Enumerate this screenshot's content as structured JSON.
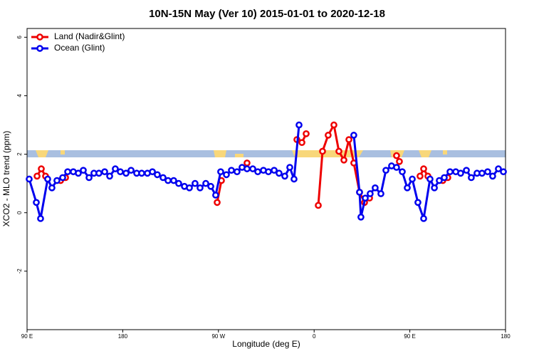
{
  "chart_data": {
    "type": "line",
    "title": "10N-15N May (Ver 10)   2015-01-01 to 2020-12-18",
    "xlabel": "Longitude (deg E)",
    "ylabel": "XCO2 - MLO trend (ppm)",
    "xlim": [
      90,
      540
    ],
    "xticks": [
      {
        "value": 90,
        "label": "90 E"
      },
      180,
      {
        "value": 270,
        "label": "90 W"
      },
      {
        "value": 360,
        "label": "0"
      },
      {
        "value": 450,
        "label": "90 E"
      },
      {
        "value": 540,
        "label": "180"
      }
    ],
    "ylim": [
      -4,
      6.3
    ],
    "yticks": [
      -2,
      0,
      2,
      4,
      6
    ],
    "legend": "top-left",
    "series": [
      {
        "name": "Land (Nadir&Glint)",
        "color": "#ee0000",
        "x": [
          99.4,
          103.4,
          107.4,
          null,
          121.5,
          126.2,
          null,
          268.8,
          272.8,
          null,
          296.9,
          null,
          343.8,
          348.5,
          352.5,
          null,
          363.9,
          367.9,
          373.2,
          378.6,
          383.3,
          388.0,
          392.7,
          397.3,
          402.7,
          407.4,
          412.1,
          null,
          437.5,
          440.2,
          null,
          459.6,
          463.0,
          467.0,
          null,
          481.0,
          485.7
        ],
        "values": [
          1.25,
          1.5,
          1.25,
          null,
          1.1,
          1.2,
          null,
          0.35,
          1.1,
          null,
          1.7,
          null,
          2.5,
          2.4,
          2.7,
          null,
          0.25,
          2.1,
          2.65,
          3.0,
          2.1,
          1.8,
          2.5,
          1.7,
          0.7,
          0.35,
          0.5,
          null,
          1.95,
          1.75,
          null,
          1.25,
          1.5,
          1.25,
          null,
          1.1,
          1.2
        ]
      },
      {
        "name": "Ocean (Glint)",
        "color": "#0000ee",
        "x": [
          92.0,
          98.7,
          102.7,
          109.4,
          113.4,
          118.1,
          123.5,
          128.2,
          133.5,
          138.2,
          142.9,
          148.3,
          152.9,
          157.6,
          163.0,
          167.7,
          173.0,
          177.7,
          183.1,
          187.8,
          193.1,
          197.8,
          203.2,
          207.9,
          212.5,
          217.9,
          222.6,
          227.9,
          232.6,
          238.0,
          242.7,
          248.0,
          252.7,
          258.1,
          262.8,
          267.4,
          272.1,
          277.5,
          282.2,
          287.5,
          292.2,
          296.9,
          302.3,
          307.0,
          312.3,
          317.0,
          322.4,
          327.0,
          332.4,
          337.1,
          341.1,
          345.8,
          null,
          397.3,
          402.7,
          404.0,
          408.1,
          412.7,
          417.4,
          422.8,
          427.5,
          432.8,
          437.5,
          442.9,
          447.6,
          452.3,
          457.6,
          463.0,
          469.0,
          473.1,
          477.7,
          482.4,
          487.8,
          493.2,
          497.8,
          503.2,
          507.8,
          513.2,
          517.9,
          523.2,
          527.9,
          533.3,
          538.0
        ],
        "values": [
          1.15,
          0.35,
          -0.2,
          1.15,
          0.85,
          1.1,
          1.2,
          1.4,
          1.4,
          1.35,
          1.45,
          1.2,
          1.35,
          1.35,
          1.4,
          1.25,
          1.5,
          1.4,
          1.35,
          1.45,
          1.35,
          1.35,
          1.35,
          1.4,
          1.3,
          1.2,
          1.1,
          1.1,
          1.0,
          0.9,
          0.85,
          1.0,
          0.85,
          1.0,
          0.9,
          0.6,
          1.4,
          1.3,
          1.45,
          1.4,
          1.55,
          1.5,
          1.5,
          1.4,
          1.45,
          1.4,
          1.45,
          1.35,
          1.25,
          1.55,
          1.15,
          3.0,
          null,
          2.65,
          0.7,
          -0.15,
          0.5,
          0.65,
          0.85,
          0.65,
          1.45,
          1.6,
          1.55,
          1.4,
          0.85,
          1.15,
          0.35,
          -0.2,
          1.15,
          0.85,
          1.1,
          1.2,
          1.4,
          1.4,
          1.35,
          1.45,
          1.2,
          1.35,
          1.35,
          1.4,
          1.25,
          1.5,
          1.4
        ]
      }
    ]
  }
}
